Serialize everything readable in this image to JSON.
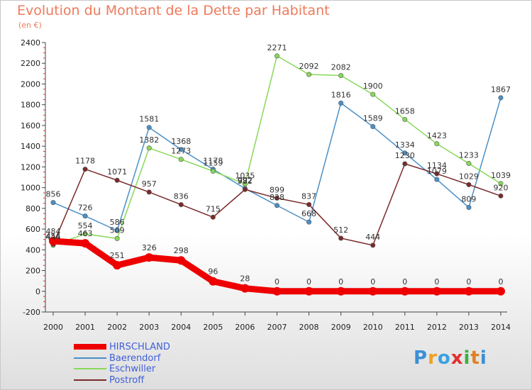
{
  "title": "Evolution du Montant de la Dette par Habitant",
  "subtitle": "(en €)",
  "logo": {
    "letters": [
      "P",
      "r",
      "o",
      "x",
      "i",
      "t",
      "i"
    ],
    "colors": [
      "#3a8fd6",
      "#f0a020",
      "#3aa0e0",
      "#e03030",
      "#3ab040",
      "#e08020",
      "#3a8fd6"
    ]
  },
  "chart_data": {
    "type": "line",
    "title": "Evolution du Montant de la Dette par Habitant",
    "subtitle": "(en €)",
    "x": [
      "2000",
      "2001",
      "2002",
      "2003",
      "2004",
      "2005",
      "2006",
      "2007",
      "2008",
      "2009",
      "2010",
      "2011",
      "2012",
      "2013",
      "2014"
    ],
    "ylim": [
      -200,
      2400
    ],
    "yticks": [
      -200,
      0,
      200,
      400,
      600,
      800,
      1000,
      1200,
      1400,
      1600,
      1800,
      2000,
      2200,
      2400
    ],
    "grid": false,
    "legend": "bottom-left",
    "series": [
      {
        "name": "HIRSCHLAND",
        "color": "#ee0000",
        "values": [
          484,
          463,
          251,
          326,
          298,
          96,
          28,
          0,
          0,
          0,
          0,
          0,
          0,
          0,
          0
        ]
      },
      {
        "name": "Baerendorf",
        "color": "#4a90c8",
        "values": [
          856,
          726,
          586,
          1581,
          1368,
          1178,
          992,
          828,
          668,
          1816,
          1589,
          1334,
          1079,
          809,
          1867
        ]
      },
      {
        "name": "Eschwiller",
        "color": "#88d858",
        "values": [
          444,
          554,
          509,
          1382,
          1273,
          1159,
          1035,
          2271,
          2092,
          2082,
          1900,
          1658,
          1423,
          1233,
          1039
        ]
      },
      {
        "name": "Postroff",
        "color": "#7a2a2a",
        "values": [
          454,
          1178,
          1071,
          957,
          836,
          715,
          982,
          899,
          837,
          512,
          444,
          1230,
          1134,
          1029,
          920
        ]
      }
    ]
  }
}
